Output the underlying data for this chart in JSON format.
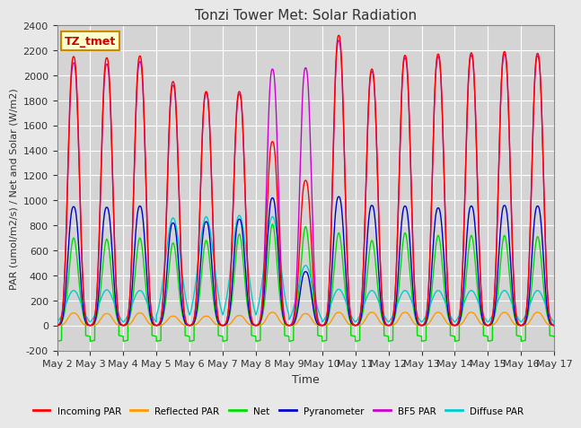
{
  "title": "Tonzi Tower Met: Solar Radiation",
  "ylabel": "PAR (umol/m2/s) / Net and Solar (W/m2)",
  "xlabel": "Time",
  "ylim": [
    -200,
    2400
  ],
  "annotation": "TZ_tmet",
  "background_color": "#e8e8e8",
  "plot_bg_color": "#d4d4d4",
  "grid_color": "#ffffff",
  "x_tick_labels": [
    "May 2",
    "May 3",
    "May 4",
    "May 5",
    "May 6",
    "May 7",
    "May 8",
    "May 9",
    "May 10",
    "May 11",
    "May 12",
    "May 13",
    "May 14",
    "May 15",
    "May 16",
    "May 17"
  ],
  "series": {
    "incoming_par": {
      "label": "Incoming PAR",
      "color": "#ff0000"
    },
    "reflected_par": {
      "label": "Reflected PAR",
      "color": "#ff9900"
    },
    "net": {
      "label": "Net",
      "color": "#00dd00"
    },
    "pyranometer": {
      "label": "Pyranometer",
      "color": "#0000cc"
    },
    "bf5_par": {
      "label": "BF5 PAR",
      "color": "#cc00cc"
    },
    "diffuse_par": {
      "label": "Diffuse PAR",
      "color": "#00cccc"
    }
  },
  "num_days": 15,
  "points_per_day": 288,
  "day_peaks_inc": [
    2150,
    2140,
    2155,
    1950,
    1870,
    1870,
    1470,
    1160,
    2320,
    2050,
    2160,
    2170,
    2180,
    2190,
    2175
  ],
  "day_peaks_pyr": [
    950,
    945,
    955,
    820,
    830,
    850,
    1020,
    430,
    1030,
    960,
    955,
    940,
    955,
    960,
    955
  ],
  "day_peaks_net": [
    700,
    690,
    700,
    660,
    680,
    730,
    810,
    790,
    740,
    680,
    740,
    720,
    720,
    720,
    710
  ],
  "day_peaks_bf5": [
    2100,
    2090,
    2110,
    1920,
    1860,
    1850,
    2050,
    2060,
    2280,
    2030,
    2140,
    2150,
    2160,
    2170,
    2155
  ],
  "day_peaks_ref": [
    100,
    95,
    100,
    75,
    75,
    80,
    105,
    95,
    105,
    105,
    105,
    105,
    105,
    105,
    105
  ],
  "day_peaks_dif": [
    280,
    285,
    280,
    860,
    870,
    880,
    870,
    480,
    290,
    280,
    280,
    280,
    280,
    280,
    280
  ],
  "night_net": -100
}
